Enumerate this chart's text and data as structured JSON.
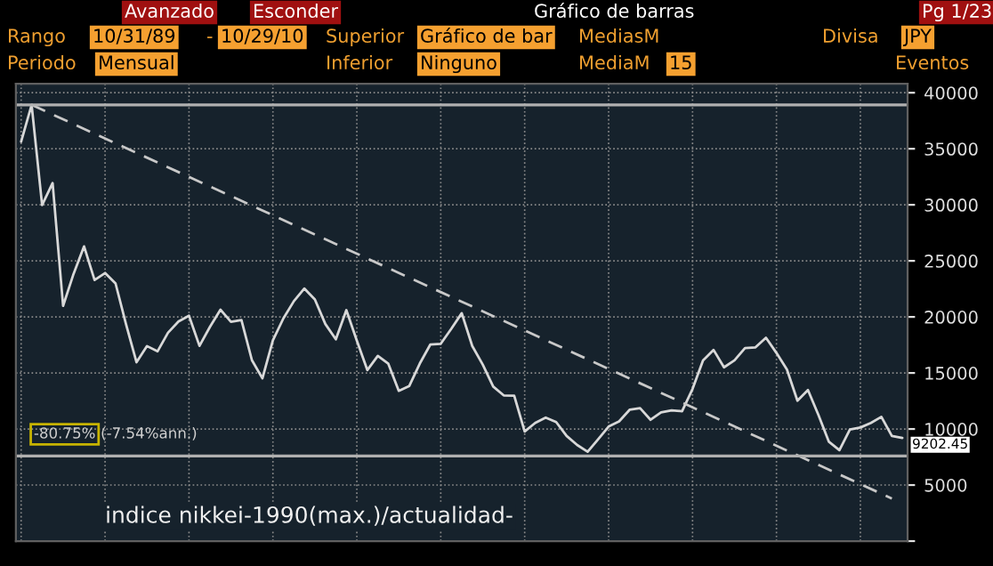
{
  "chart_data": {
    "type": "line",
    "title": "indice nikkei-1990(max.)/actualidad-",
    "categories": [
      null,
      null,
      null,
      null,
      null,
      null,
      null,
      null,
      null,
      null,
      null,
      null,
      null,
      null,
      null,
      null,
      null,
      null,
      null,
      null,
      null,
      null,
      null,
      null,
      null,
      null,
      null,
      null,
      null,
      null,
      null,
      null,
      null,
      null,
      null,
      null,
      null,
      null,
      null,
      null,
      null,
      null,
      null,
      null,
      null,
      null,
      null,
      null,
      null,
      null,
      null,
      null,
      null,
      null,
      null,
      null,
      null,
      null,
      null,
      null,
      null,
      null,
      null,
      null,
      null,
      null,
      null,
      null,
      null,
      null,
      null,
      null,
      null,
      null,
      null,
      null,
      null,
      null,
      null,
      null,
      null,
      null,
      null,
      null,
      null
    ],
    "series": [
      {
        "color": "#d8d8d8",
        "line_style": "solid",
        "values": [
          35637,
          38916,
          29980,
          31940,
          20984,
          23849,
          26292,
          23291,
          23916,
          22984,
          19346,
          15952,
          17399,
          16925,
          18591,
          19590,
          20106,
          17417,
          19112,
          20644,
          19564,
          19723,
          16140,
          14517,
          17913,
          19868,
          21407,
          22531,
          21556,
          19361,
          18003,
          20605,
          17888,
          15259,
          16527,
          15830,
          13406,
          13842,
          15837,
          17530,
          17605,
          18934,
          20337,
          17411,
          15747,
          13785,
          12999,
          12969,
          9774,
          10542,
          11024,
          10621,
          9383,
          8578,
          7972,
          9083,
          10219,
          10676,
          11715,
          11858,
          10823,
          11488,
          11668,
          11584,
          13574,
          16111,
          17059,
          15505,
          16127,
          17225,
          17287,
          18138,
          16785,
          15307,
          12525,
          13481,
          11259,
          8859,
          8109,
          9958,
          10133,
          10546,
          11089,
          9382,
          9202.45
        ]
      },
      {
        "type": "line",
        "color": "#c8c8c8",
        "line_style": "dashed",
        "values": [
          null,
          38916,
          null,
          null,
          null,
          null,
          null,
          null,
          null,
          null,
          null,
          null,
          null,
          null,
          null,
          null,
          null,
          null,
          null,
          null,
          null,
          null,
          null,
          null,
          null,
          null,
          null,
          null,
          null,
          null,
          null,
          null,
          null,
          null,
          null,
          null,
          null,
          null,
          null,
          null,
          null,
          null,
          null,
          null,
          null,
          null,
          null,
          null,
          null,
          null,
          null,
          null,
          null,
          null,
          null,
          null,
          null,
          null,
          null,
          null,
          null,
          null,
          null,
          null,
          null,
          null,
          null,
          null,
          null,
          null,
          null,
          null,
          null,
          null,
          null,
          null,
          null,
          null,
          null,
          null,
          null,
          null,
          null,
          3800,
          null
        ]
      }
    ],
    "ref_lines": [
      {
        "axis": "y",
        "value": 38916,
        "color": "#b0b0b0"
      },
      {
        "axis": "y",
        "value": 7600,
        "color": "#b0b0b0"
      }
    ],
    "annotations": [
      "Avanzado",
      "Esconder",
      "Gráfico de barras",
      "Pg 1/23",
      "Rango",
      "10/31/89",
      "-",
      "10/29/10",
      "Superior",
      "Gráfico de bar",
      "MediasM",
      "Divisa",
      "JPY",
      "Periodo",
      "Mensual",
      "Inferior",
      "Ninguno",
      "MediaM",
      "15",
      "Eventos",
      "-80.75%",
      "(-7.54%ann.)",
      "9202.45"
    ],
    "ylim": [
      0,
      40800
    ],
    "yticks": [
      {
        "value": 0,
        "label": null
      },
      5000,
      10000,
      15000,
      20000,
      25000,
      30000,
      35000,
      40000
    ],
    "tick_labels": "y",
    "grid": true,
    "legend": false,
    "marker": "none"
  }
}
